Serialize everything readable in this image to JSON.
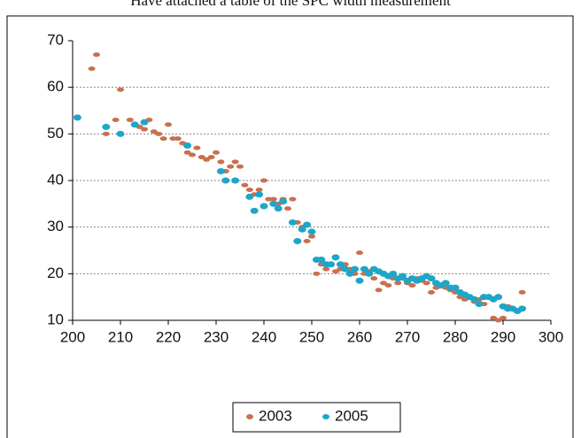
{
  "caption": "Have attached a table of the SPC width measurement",
  "chart_data": {
    "type": "scatter",
    "xlim": [
      200,
      300
    ],
    "xticks": [
      200,
      210,
      220,
      230,
      240,
      250,
      260,
      270,
      280,
      290,
      300
    ],
    "ylim": [
      10,
      70
    ],
    "yticks": [
      10,
      20,
      30,
      40,
      50,
      60,
      70
    ],
    "grid": true,
    "legend": "bottom",
    "series": [
      {
        "name": "2003",
        "color": "#c8704f",
        "x": [
          204,
          205,
          207,
          209,
          210,
          212,
          213,
          214,
          215,
          216,
          217,
          218,
          219,
          220,
          221,
          222,
          223,
          224,
          225,
          226,
          227,
          228,
          229,
          230,
          231,
          232,
          233,
          234,
          235,
          236,
          237,
          238,
          239,
          240,
          241,
          242,
          243,
          244,
          245,
          246,
          247,
          248,
          249,
          250,
          251,
          252,
          253,
          254,
          255,
          256,
          257,
          258,
          259,
          260,
          261,
          262,
          263,
          264,
          265,
          266,
          267,
          268,
          269,
          270,
          271,
          272,
          273,
          274,
          275,
          276,
          277,
          278,
          279,
          280,
          281,
          282,
          283,
          284,
          285,
          286,
          287,
          288,
          289,
          290,
          291,
          292,
          293,
          294
        ],
        "values": [
          64,
          67,
          50,
          53,
          59.5,
          53,
          52,
          51.5,
          51,
          53,
          50.5,
          50,
          49,
          52,
          49,
          49,
          48,
          46,
          45.5,
          47,
          45,
          44.5,
          45,
          46,
          44,
          42,
          43,
          44,
          43,
          39,
          38,
          37,
          38,
          40,
          36,
          36,
          35,
          36,
          34,
          36,
          31,
          30,
          27,
          28,
          20,
          22,
          21,
          22,
          20.5,
          21,
          22,
          21,
          20,
          24.5,
          20,
          20.5,
          19,
          16.5,
          18,
          17.5,
          19,
          18,
          19,
          18,
          17.5,
          19,
          18.5,
          18,
          16,
          17,
          17.5,
          17,
          16.5,
          16,
          15,
          14.5,
          15,
          14,
          14.5,
          13.5,
          15,
          10.5,
          10,
          10.5,
          13,
          12.5,
          12,
          16
        ]
      },
      {
        "name": "2005",
        "color": "#1ea5c8",
        "x": [
          201,
          207,
          210,
          213,
          215,
          224,
          231,
          232,
          234,
          237,
          238,
          239,
          240,
          242,
          243,
          244,
          246,
          247,
          248,
          249,
          250,
          251,
          252,
          253,
          254,
          255,
          256,
          257,
          258,
          259,
          260,
          261,
          262,
          263,
          264,
          265,
          266,
          267,
          268,
          269,
          270,
          271,
          272,
          273,
          274,
          275,
          276,
          277,
          278,
          279,
          280,
          281,
          282,
          283,
          284,
          285,
          286,
          287,
          288,
          289,
          290,
          291,
          292,
          293,
          294
        ],
        "values": [
          53.5,
          51.5,
          50,
          52,
          52.5,
          47.5,
          42,
          40,
          40,
          36.5,
          33.5,
          37,
          34.5,
          35,
          34,
          35.5,
          31,
          27,
          29.5,
          30.5,
          29,
          23,
          23,
          22,
          22,
          23.5,
          22,
          21,
          20,
          21,
          18.5,
          21,
          20,
          21,
          20.5,
          20,
          19.5,
          20,
          19,
          19.5,
          18.5,
          19,
          18.5,
          19,
          19.5,
          19,
          18,
          17.5,
          18,
          17,
          17,
          16,
          15.5,
          15,
          14.5,
          13.5,
          15,
          15,
          14.5,
          15,
          13,
          12.5,
          12.5,
          12,
          12.5
        ]
      }
    ]
  }
}
